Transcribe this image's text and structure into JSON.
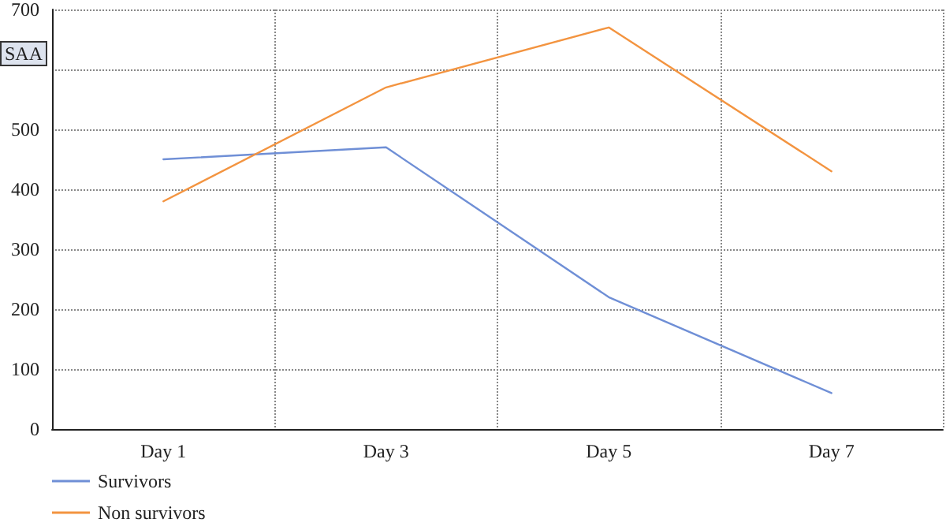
{
  "chart_data": {
    "type": "line",
    "ylabel": "SAA",
    "categories": [
      "Day 1",
      "Day 3",
      "Day 5",
      "Day 7"
    ],
    "series": [
      {
        "name": "Survivors",
        "color": "#6f8fd6",
        "values": [
          450,
          470,
          220,
          60
        ]
      },
      {
        "name": "Non survivors",
        "color": "#f39440",
        "values": [
          380,
          570,
          670,
          430
        ]
      }
    ],
    "ylim": [
      0,
      700
    ],
    "yticks": [
      0,
      100,
      200,
      300,
      400,
      500,
      {
        "value": 600,
        "label": null
      },
      700
    ],
    "grid": true,
    "legend": "bottom left",
    "marker": "none",
    "line_style": "solid"
  }
}
